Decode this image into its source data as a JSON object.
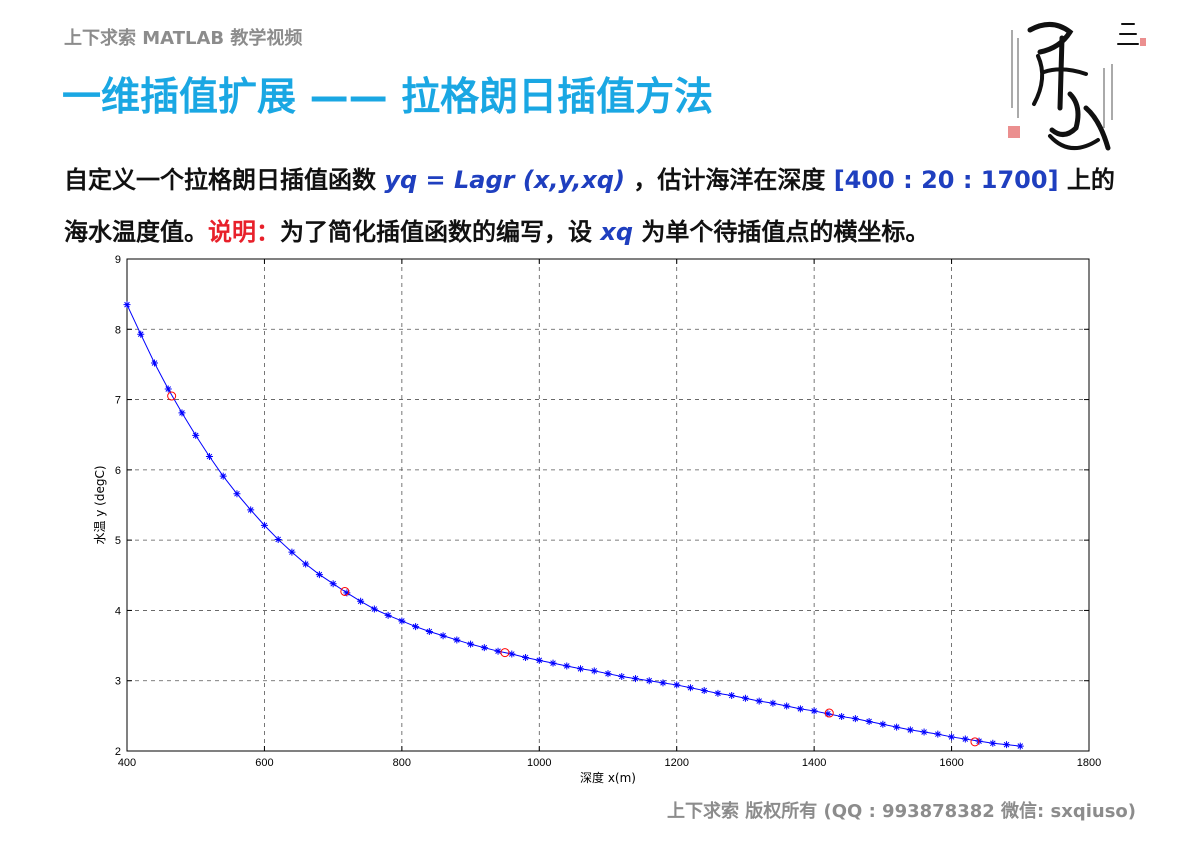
{
  "header": {
    "course": "上下求索 MATLAB 教学视频",
    "title": "一维插值扩展 —— 拉格朗日插值方法"
  },
  "description": {
    "l1_a": "自定义一个拉格朗日插值函数 ",
    "l1_code": "yq = Lagr (x,y,xq)",
    "l1_b": " ，估计海洋在深度 ",
    "l1_range": "[400 : 20 : 1700]",
    "l1_c": " 上的",
    "l2_a": "海水温度值。",
    "l2_note": "说明：",
    "l2_b": "为了简化插值函数的编写，设 ",
    "l2_var": "xq",
    "l2_c": " 为单个待插值点的横坐标。"
  },
  "footer": "上下求索 版权所有 (QQ : 993878382   微信: sxqiuso)",
  "colors": {
    "title": "#1aa7e3",
    "highlight": "#1f3fbf",
    "note": "#e8202a",
    "muted": "#8c8c8c",
    "line": "#0000ff",
    "marker_star": "#0000ff",
    "marker_circle": "#ff0000"
  },
  "chart_data": {
    "type": "line",
    "xlabel": "深度 x(m)",
    "ylabel": "水温 y (degC)",
    "xlim": [
      400,
      1800
    ],
    "ylim": [
      2,
      9
    ],
    "xticks": [
      400,
      600,
      800,
      1000,
      1200,
      1400,
      1600,
      1800
    ],
    "yticks": [
      2,
      3,
      4,
      5,
      6,
      7,
      8,
      9
    ],
    "grid": true,
    "series": [
      {
        "marker": "star",
        "x": [
          400,
          420,
          440,
          460,
          480,
          500,
          520,
          540,
          560,
          580,
          600,
          620,
          640,
          660,
          680,
          700,
          720,
          740,
          760,
          780,
          800,
          820,
          840,
          860,
          880,
          900,
          920,
          940,
          960,
          980,
          1000,
          1020,
          1040,
          1060,
          1080,
          1100,
          1120,
          1140,
          1160,
          1180,
          1200,
          1220,
          1240,
          1260,
          1280,
          1300,
          1320,
          1340,
          1360,
          1380,
          1400,
          1420,
          1440,
          1460,
          1480,
          1500,
          1520,
          1540,
          1560,
          1580,
          1600,
          1620,
          1640,
          1660,
          1680,
          1700
        ],
        "y": [
          8.35,
          7.93,
          7.52,
          7.15,
          6.81,
          6.49,
          6.19,
          5.91,
          5.66,
          5.43,
          5.21,
          5.01,
          4.83,
          4.66,
          4.51,
          4.38,
          4.25,
          4.13,
          4.02,
          3.93,
          3.85,
          3.77,
          3.7,
          3.64,
          3.58,
          3.52,
          3.47,
          3.42,
          3.38,
          3.33,
          3.29,
          3.25,
          3.21,
          3.17,
          3.14,
          3.1,
          3.06,
          3.03,
          3.0,
          2.97,
          2.94,
          2.9,
          2.86,
          2.82,
          2.79,
          2.75,
          2.71,
          2.68,
          2.64,
          2.6,
          2.57,
          2.53,
          2.49,
          2.46,
          2.42,
          2.38,
          2.34,
          2.3,
          2.27,
          2.24,
          2.2,
          2.17,
          2.14,
          2.11,
          2.09,
          2.07
        ]
      },
      {
        "marker": "circle",
        "x": [
          465,
          717,
          950,
          1422,
          1634
        ],
        "y": [
          7.05,
          4.27,
          3.4,
          2.54,
          2.13
        ]
      }
    ]
  }
}
